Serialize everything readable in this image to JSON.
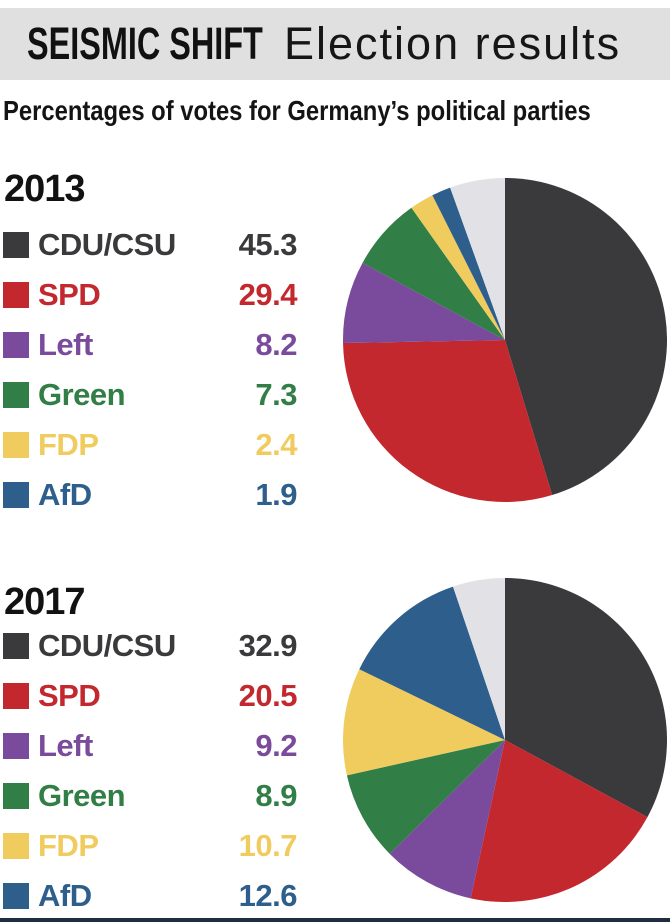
{
  "header": {
    "kicker": "SEISMIC SHIFT",
    "title": "Election results",
    "bg_color": "#e0e0e1"
  },
  "subtitle": "Percentages of votes for Germany’s political parties",
  "chart_data": [
    {
      "type": "pie",
      "title": "2013",
      "labels": [
        "CDU/CSU",
        "SPD",
        "Left",
        "Green",
        "FDP",
        "AfD",
        "Other"
      ],
      "values": [
        45.3,
        29.4,
        8.2,
        7.3,
        2.4,
        1.9,
        5.5
      ],
      "display_values": [
        "45.3",
        "29.4",
        "8.2",
        "7.3",
        "2.4",
        "1.9"
      ],
      "colors": [
        "#3a3a3c",
        "#c2282e",
        "#7a4b9d",
        "#317e46",
        "#f0cc5f",
        "#2e5e8b",
        "#e2e2e6"
      ],
      "start_angle_deg": 0,
      "direction": "clockwise",
      "legend_position": "left",
      "note": "Other (gray) slice shown in pie but not listed in legend"
    },
    {
      "type": "pie",
      "title": "2017",
      "labels": [
        "CDU/CSU",
        "SPD",
        "Left",
        "Green",
        "FDP",
        "AfD",
        "Other"
      ],
      "values": [
        32.9,
        20.5,
        9.2,
        8.9,
        10.7,
        12.6,
        5.2
      ],
      "display_values": [
        "32.9",
        "20.5",
        "9.2",
        "8.9",
        "10.7",
        "12.6"
      ],
      "colors": [
        "#3a3a3c",
        "#c2282e",
        "#7a4b9d",
        "#317e46",
        "#f0cc5f",
        "#2e5e8b",
        "#e2e2e6"
      ],
      "start_angle_deg": 0,
      "direction": "clockwise",
      "legend_position": "left",
      "note": "Other (gray) slice shown in pie but not listed in legend"
    }
  ],
  "footer": {
    "rule_color": "#1e2e3e"
  }
}
